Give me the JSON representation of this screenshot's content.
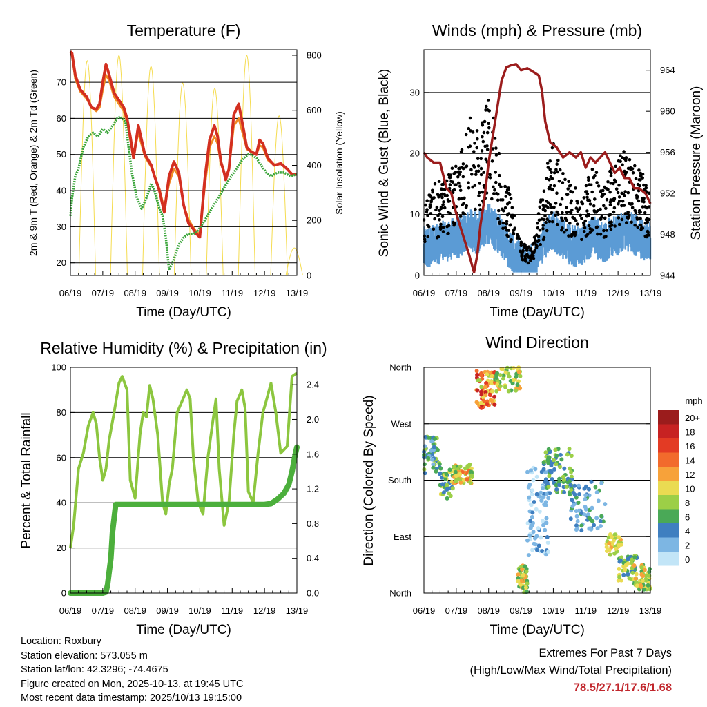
{
  "info": {
    "location": "Location: Roxbury",
    "elevation": "Station elevation: 573.055 m",
    "latlon": "Station lat/lon: 42.3296; -74.4675",
    "created": "Figure created on Mon, 2025-10-13, at 19:45 UTC",
    "recent": "Most recent data timestamp: 2025/10/13 19:15:00"
  },
  "extremes": {
    "line1": "Extremes For Past 7 Days",
    "line2": "(High/Low/Max Wind/Total Precipitation)",
    "values": "78.5/27.1/17.6/1.68"
  },
  "colors": {
    "temp2m": "#d32f20",
    "temp9m": "#f08a24",
    "dewpoint": "#3aa53a",
    "solar": "#f5dc50",
    "wind": "#5b9bd5",
    "gust": "#000000",
    "pressure": "#9b1c1c",
    "rh": "#8cc63f",
    "precip": "#4caf3c"
  },
  "chart_data": [
    {
      "type": "line",
      "title": "Temperature (F)",
      "xlabel": "Time (Day/UTC)",
      "ylabel": "2m & 9m T (Red, Orange) & 2m Td (Green)",
      "y2label": "Solar Insolation (Yellow)",
      "xticks": [
        "06/19",
        "07/19",
        "08/19",
        "09/19",
        "10/19",
        "11/19",
        "12/19",
        "13/19"
      ],
      "xlim": [
        0,
        7
      ],
      "ylim": [
        16.5,
        79
      ],
      "y2lim": [
        0,
        820
      ],
      "yticks": [
        20,
        30,
        40,
        50,
        60,
        70
      ],
      "y2ticks": [
        0,
        200,
        400,
        600,
        800
      ],
      "series": [
        {
          "name": "2m T",
          "x": [
            0,
            0.05,
            0.15,
            0.3,
            0.5,
            0.65,
            0.8,
            0.9,
            1,
            1.1,
            1.2,
            1.35,
            1.5,
            1.65,
            1.75,
            1.85,
            1.95,
            2.1,
            2.3,
            2.5,
            2.6,
            2.75,
            2.9,
            3.05,
            3.2,
            3.35,
            3.5,
            3.65,
            3.75,
            3.9,
            4,
            4.15,
            4.3,
            4.45,
            4.55,
            4.65,
            4.75,
            4.8,
            4.9,
            5.05,
            5.2,
            5.35,
            5.45,
            5.55,
            5.75,
            5.85,
            5.95,
            6.1,
            6.3,
            6.5,
            6.7,
            6.85,
            7
          ],
          "values": [
            78.5,
            78,
            72,
            68,
            66,
            63,
            62.5,
            64,
            70,
            75,
            72,
            67,
            65,
            63,
            60,
            55,
            49,
            58,
            50,
            47,
            44,
            40,
            34,
            44,
            48,
            45,
            36,
            31,
            30,
            28,
            27.1,
            43,
            54,
            58,
            55,
            48,
            45,
            43,
            46,
            61,
            64,
            57,
            52,
            51,
            50,
            54,
            53,
            49,
            47,
            47.5,
            46,
            44.5,
            44.5
          ]
        },
        {
          "name": "9m T",
          "x": [
            0,
            0.05,
            0.15,
            0.3,
            0.5,
            0.65,
            0.8,
            0.9,
            1,
            1.1,
            1.2,
            1.35,
            1.5,
            1.65,
            1.75,
            1.85,
            1.95,
            2.1,
            2.3,
            2.5,
            2.6,
            2.75,
            2.9,
            3.05,
            3.2,
            3.35,
            3.5,
            3.65,
            3.75,
            3.9,
            4,
            4.15,
            4.3,
            4.45,
            4.55,
            4.65,
            4.75,
            4.8,
            4.9,
            5.05,
            5.2,
            5.35,
            5.45,
            5.55,
            5.75,
            5.85,
            5.95,
            6.1,
            6.3,
            6.5,
            6.7,
            6.85,
            7
          ],
          "values": [
            78,
            77.5,
            71,
            67.5,
            65.5,
            63,
            62,
            63,
            68,
            72,
            70.5,
            66,
            64,
            62,
            59,
            54,
            50,
            56,
            49.5,
            46.5,
            44,
            40.5,
            35,
            42,
            46,
            44,
            36,
            32,
            30.5,
            28.5,
            28,
            41,
            52,
            55,
            53,
            47.5,
            45,
            44,
            46,
            58,
            60,
            55,
            51.5,
            51,
            50,
            52.5,
            52,
            48.5,
            47,
            47.5,
            46,
            44.5,
            44.5
          ]
        },
        {
          "name": "2m Td",
          "x": [
            0,
            0.05,
            0.15,
            0.25,
            0.4,
            0.55,
            0.7,
            0.85,
            1,
            1.15,
            1.3,
            1.45,
            1.55,
            1.7,
            1.8,
            1.9,
            2.05,
            2.2,
            2.35,
            2.5,
            2.6,
            2.75,
            2.85,
            2.95,
            3.05,
            3.2,
            3.35,
            3.5,
            3.65,
            3.8,
            3.95,
            4.1,
            4.3,
            4.5,
            4.7,
            4.9,
            5.05,
            5.2,
            5.35,
            5.5,
            5.6,
            5.75,
            5.9,
            6.05,
            6.2,
            6.4,
            6.6,
            6.8,
            7
          ],
          "values": [
            33,
            38,
            44,
            46,
            52,
            55,
            56,
            55,
            57,
            56,
            58,
            60,
            60.5,
            59,
            52,
            45,
            38,
            35,
            38,
            42,
            40,
            35,
            33,
            27,
            18,
            21,
            25,
            27,
            28,
            28,
            29,
            31,
            34,
            37,
            40,
            43,
            45,
            47,
            49,
            50,
            50,
            49,
            47,
            45,
            44,
            45,
            45,
            44,
            44.5
          ]
        }
      ],
      "solar_peaks": [
        {
          "x": 0.52,
          "w": 780
        },
        {
          "x": 1.5,
          "w": 800
        },
        {
          "x": 2.49,
          "w": 760
        },
        {
          "x": 3.47,
          "w": 700
        },
        {
          "x": 4.46,
          "w": 680
        },
        {
          "x": 5.45,
          "w": 800
        },
        {
          "x": 6.45,
          "w": 580
        },
        {
          "x": 6.92,
          "w": 100
        }
      ]
    },
    {
      "type": "scatter",
      "title": "Winds (mph) & Pressure (mb)",
      "xlabel": "Time (Day/UTC)",
      "ylabel": "Sonic Wind & Gust (Blue, Black)",
      "y2label": "Station Pressure (Maroon)",
      "xticks": [
        "06/19",
        "07/19",
        "08/19",
        "09/19",
        "10/19",
        "11/19",
        "12/19",
        "13/19"
      ],
      "xlim": [
        0,
        7
      ],
      "ylim": [
        0,
        37
      ],
      "y2lim": [
        944,
        966
      ],
      "yticks": [
        0,
        10,
        20,
        30
      ],
      "y2ticks": [
        944,
        948,
        952,
        956,
        960,
        964
      ],
      "wind_mean": {
        "x": [
          0,
          0.3,
          0.6,
          0.9,
          1.2,
          1.4,
          1.6,
          1.8,
          2,
          2.2,
          2.4,
          2.6,
          2.8,
          3,
          3.2,
          3.4,
          3.6,
          3.8,
          4,
          4.2,
          4.4,
          4.6,
          4.8,
          5,
          5.2,
          5.4,
          5.6,
          5.8,
          6,
          6.2,
          6.4,
          6.6,
          6.8,
          7
        ],
        "values": [
          4,
          4.5,
          5,
          5.5,
          6,
          7,
          6.5,
          7,
          8,
          7,
          6,
          4,
          3,
          1.5,
          1,
          1.5,
          4,
          6,
          7,
          6,
          5,
          4.5,
          4,
          5,
          6,
          5.5,
          5,
          6,
          6,
          7,
          6.5,
          6,
          5.5,
          5
        ]
      },
      "gust_mean": {
        "x": [
          0,
          0.3,
          0.6,
          0.9,
          1.2,
          1.4,
          1.6,
          1.8,
          2,
          2.2,
          2.4,
          2.6,
          2.8,
          3,
          3.2,
          3.4,
          3.6,
          3.8,
          4,
          4.2,
          4.4,
          4.6,
          4.8,
          5,
          5.2,
          5.4,
          5.6,
          5.8,
          6,
          6.2,
          6.4,
          6.6,
          6.8,
          7
        ],
        "values": [
          9,
          10,
          11,
          12,
          14,
          18,
          16,
          17,
          20,
          17,
          13,
          10,
          7,
          4,
          3,
          4,
          8,
          12,
          15,
          13,
          11,
          10,
          9,
          10,
          12,
          11,
          10,
          12,
          13,
          14,
          13,
          12,
          11,
          10
        ]
      },
      "series": [
        {
          "name": "Station Pressure",
          "x": [
            0,
            0.1,
            0.3,
            0.5,
            0.7,
            0.85,
            1,
            1.2,
            1.4,
            1.55,
            1.65,
            1.75,
            1.85,
            2,
            2.2,
            2.4,
            2.55,
            2.7,
            2.85,
            3,
            3.2,
            3.4,
            3.55,
            3.65,
            3.75,
            3.9,
            4.1,
            4.3,
            4.5,
            4.7,
            4.85,
            5,
            5.15,
            5.3,
            5.45,
            5.6,
            5.75,
            5.9,
            6.05,
            6.2,
            6.35,
            6.5,
            6.65,
            6.85,
            7
          ],
          "values": [
            956,
            955.5,
            955,
            955,
            952.5,
            952,
            950,
            948,
            946,
            944.3,
            946,
            949,
            951,
            955,
            959,
            963,
            964.3,
            964.5,
            964.6,
            964,
            964.2,
            963.8,
            963.5,
            962,
            959,
            957,
            956.5,
            955.5,
            956,
            955.5,
            956,
            954.5,
            955.5,
            955,
            955.5,
            956,
            955,
            954,
            954.5,
            953.5,
            953.5,
            952.5,
            952.5,
            952,
            951
          ]
        }
      ]
    },
    {
      "type": "line",
      "title": "Relative Humidity (%) & Precipitation (in)",
      "xlabel": "Time (Day/UTC)",
      "ylabel": "Percent & Total Rainfall",
      "xticks": [
        "06/19",
        "07/19",
        "08/19",
        "09/19",
        "10/19",
        "11/19",
        "12/19",
        "13/19"
      ],
      "xlim": [
        0,
        7
      ],
      "ylim": [
        0,
        100
      ],
      "y2lim": [
        0,
        2.6
      ],
      "yticks": [
        0,
        20,
        40,
        60,
        80,
        100
      ],
      "y2ticks": [
        "0.0",
        "0.4",
        "0.8",
        "1.2",
        "1.6",
        "2.0",
        "2.4"
      ],
      "series": [
        {
          "name": "Relative Humidity",
          "x": [
            0,
            0.1,
            0.25,
            0.4,
            0.55,
            0.7,
            0.8,
            0.9,
            1,
            1.1,
            1.2,
            1.35,
            1.5,
            1.6,
            1.75,
            1.85,
            2,
            2.15,
            2.25,
            2.35,
            2.45,
            2.55,
            2.7,
            2.85,
            2.95,
            3.05,
            3.15,
            3.3,
            3.45,
            3.6,
            3.7,
            3.8,
            3.95,
            4.1,
            4.25,
            4.4,
            4.5,
            4.6,
            4.75,
            4.9,
            5.05,
            5.15,
            5.3,
            5.4,
            5.5,
            5.65,
            5.8,
            5.95,
            6.05,
            6.2,
            6.35,
            6.5,
            6.7,
            6.85,
            7
          ],
          "values": [
            20,
            30,
            55,
            62,
            74,
            80,
            75,
            60,
            50,
            55,
            68,
            80,
            93,
            96,
            90,
            50,
            42,
            70,
            80,
            78,
            92,
            86,
            70,
            40,
            35,
            48,
            55,
            80,
            85,
            90,
            86,
            60,
            40,
            35,
            60,
            76,
            86,
            55,
            30,
            40,
            70,
            85,
            90,
            82,
            45,
            40,
            62,
            80,
            85,
            93,
            80,
            62,
            65,
            96,
            97.5
          ]
        },
        {
          "name": "Total Precipitation",
          "x": [
            0,
            1,
            1.1,
            1.15,
            1.2,
            1.25,
            1.3,
            1.4,
            2,
            3,
            4,
            5,
            6,
            6.2,
            6.4,
            6.6,
            6.75,
            6.85,
            6.95,
            7
          ],
          "values": [
            0,
            0,
            0.01,
            0.1,
            0.25,
            0.4,
            0.7,
            1.02,
            1.02,
            1.02,
            1.02,
            1.02,
            1.02,
            1.03,
            1.08,
            1.15,
            1.25,
            1.4,
            1.6,
            1.68
          ]
        }
      ]
    },
    {
      "type": "scatter",
      "title": "Wind Direction",
      "xlabel": "Time (Day/UTC)",
      "ylabel": "Direction (Colored By Speed)",
      "xticks": [
        "06/19",
        "07/19",
        "08/19",
        "09/19",
        "10/19",
        "11/19",
        "12/19",
        "13/19"
      ],
      "xlim": [
        0,
        7
      ],
      "ylim": [
        0,
        360
      ],
      "yticks": [
        "North",
        "East",
        "South",
        "West",
        "North"
      ],
      "legend_title": "mph",
      "legend_labels": [
        "20+",
        "18",
        "16",
        "14",
        "12",
        "10",
        "8",
        "6",
        "4",
        "2",
        "0"
      ],
      "legend_colors": [
        "#9b1c1c",
        "#c72222",
        "#e33b24",
        "#f26b2c",
        "#f7a23a",
        "#eadb52",
        "#9ccf47",
        "#4aa957",
        "#3f7fc0",
        "#7db6e3",
        "#c2e5f7"
      ],
      "clusters": [
        {
          "x0": 0,
          "x1": 0.5,
          "d0": 190,
          "d1": 250,
          "s0": 2,
          "s1": 8,
          "n": 60
        },
        {
          "x0": 0.5,
          "x1": 0.9,
          "d0": 150,
          "d1": 200,
          "s0": 3,
          "s1": 10,
          "n": 40
        },
        {
          "x0": 0.9,
          "x1": 1.5,
          "d0": 175,
          "d1": 205,
          "s0": 6,
          "s1": 14,
          "n": 70
        },
        {
          "x0": 1.6,
          "x1": 2.2,
          "d0": 295,
          "d1": 355,
          "s0": 8,
          "s1": 19,
          "n": 80
        },
        {
          "x0": 2.2,
          "x1": 3.0,
          "d0": 320,
          "d1": 360,
          "s0": 5,
          "s1": 12,
          "n": 50
        },
        {
          "x0": 2.9,
          "x1": 3.2,
          "d0": 0,
          "d1": 45,
          "s0": 5,
          "s1": 13,
          "n": 45
        },
        {
          "x0": 3.2,
          "x1": 3.9,
          "d0": 60,
          "d1": 200,
          "s0": 0,
          "s1": 4,
          "n": 90
        },
        {
          "x0": 3.7,
          "x1": 4.6,
          "d0": 160,
          "d1": 230,
          "s0": 3,
          "s1": 9,
          "n": 80
        },
        {
          "x0": 4.5,
          "x1": 5.6,
          "d0": 100,
          "d1": 180,
          "s0": 1,
          "s1": 6,
          "n": 70
        },
        {
          "x0": 5.6,
          "x1": 6.1,
          "d0": 60,
          "d1": 95,
          "s0": 7,
          "s1": 12,
          "n": 35
        },
        {
          "x0": 6.0,
          "x1": 6.6,
          "d0": 20,
          "d1": 60,
          "s0": 4,
          "s1": 11,
          "n": 50
        },
        {
          "x0": 6.5,
          "x1": 7,
          "d0": 5,
          "d1": 45,
          "s0": 5,
          "s1": 12,
          "n": 50
        }
      ]
    }
  ]
}
